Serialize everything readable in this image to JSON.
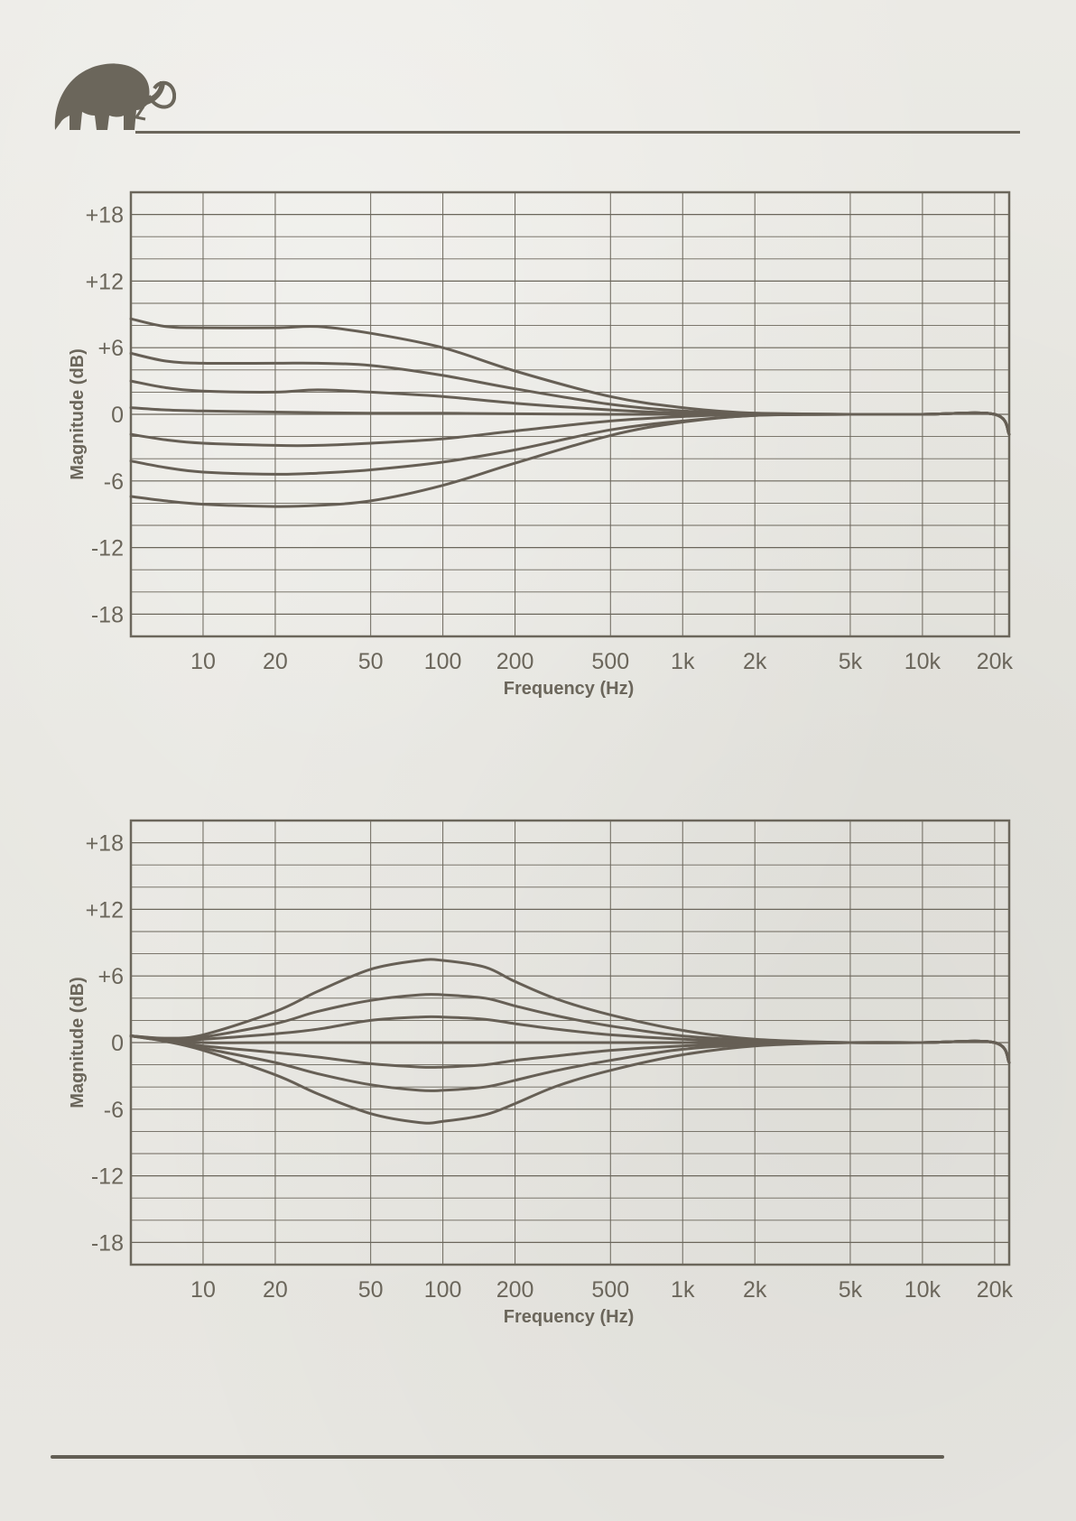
{
  "colors": {
    "ink": "#6b665b",
    "curve": "#665f55",
    "paper": "#e9e8e3"
  },
  "logo": {
    "icon": "mammoth-icon"
  },
  "chart_data": [
    {
      "type": "line",
      "xlabel": "Frequency (Hz)",
      "ylabel": "Magnitude (dB)",
      "xscale": "log",
      "xlim": [
        5,
        23000
      ],
      "ylim": [
        -20,
        20
      ],
      "grid": true,
      "x_ticks": [
        10,
        20,
        50,
        100,
        200,
        500,
        1000,
        2000,
        5000,
        10000,
        20000
      ],
      "x_tick_labels": [
        "10",
        "20",
        "50",
        "100",
        "200",
        "500",
        "1k",
        "2k",
        "5k",
        "10k",
        "20k"
      ],
      "y_ticks": [
        18,
        12,
        6,
        0,
        -6,
        -12,
        -18
      ],
      "y_tick_labels": [
        "+18",
        "+12",
        "+6",
        "0",
        "-6",
        "-12",
        "-18"
      ],
      "series": [
        {
          "x": [
            5,
            7,
            10,
            20,
            30,
            50,
            100,
            200,
            500,
            1000,
            2000,
            5000,
            10000,
            20000,
            23000
          ],
          "y": [
            8.6,
            7.9,
            7.8,
            7.8,
            7.9,
            7.3,
            6.0,
            3.9,
            1.6,
            0.6,
            0.1,
            0,
            0,
            0,
            -1.8
          ]
        },
        {
          "x": [
            5,
            7,
            10,
            20,
            30,
            50,
            100,
            200,
            500,
            1000,
            2000,
            5000,
            10000,
            20000,
            23000
          ],
          "y": [
            5.5,
            4.8,
            4.6,
            4.6,
            4.6,
            4.4,
            3.5,
            2.3,
            0.9,
            0.3,
            0.1,
            0,
            0,
            0,
            -1.8
          ]
        },
        {
          "x": [
            5,
            7,
            10,
            20,
            30,
            50,
            100,
            200,
            500,
            1000,
            2000,
            5000,
            10000,
            20000,
            23000
          ],
          "y": [
            3.0,
            2.4,
            2.1,
            2.0,
            2.2,
            2.0,
            1.6,
            1.0,
            0.4,
            0.1,
            0,
            0,
            0,
            0,
            -1.8
          ]
        },
        {
          "x": [
            5,
            7,
            10,
            20,
            50,
            100,
            200,
            500,
            1000,
            2000,
            5000,
            10000,
            20000,
            23000
          ],
          "y": [
            0.6,
            0.4,
            0.3,
            0.2,
            0.1,
            0.1,
            0.05,
            0,
            0,
            0,
            0,
            0,
            0,
            -1.8
          ]
        },
        {
          "x": [
            5,
            7,
            10,
            20,
            30,
            50,
            100,
            200,
            500,
            1000,
            2000,
            5000,
            10000,
            20000,
            23000
          ],
          "y": [
            -1.8,
            -2.3,
            -2.6,
            -2.8,
            -2.8,
            -2.6,
            -2.2,
            -1.5,
            -0.6,
            -0.2,
            0,
            0,
            0,
            0,
            -1.8
          ]
        },
        {
          "x": [
            5,
            7,
            10,
            20,
            30,
            50,
            100,
            200,
            500,
            1000,
            2000,
            5000,
            10000,
            20000,
            23000
          ],
          "y": [
            -4.2,
            -4.8,
            -5.2,
            -5.4,
            -5.3,
            -5.0,
            -4.3,
            -3.2,
            -1.4,
            -0.6,
            -0.1,
            0,
            0,
            0,
            -1.8
          ]
        },
        {
          "x": [
            5,
            7,
            10,
            20,
            30,
            50,
            100,
            200,
            500,
            1000,
            2000,
            5000,
            10000,
            20000,
            23000
          ],
          "y": [
            -7.4,
            -7.8,
            -8.1,
            -8.3,
            -8.2,
            -7.8,
            -6.4,
            -4.4,
            -1.9,
            -0.7,
            -0.1,
            0,
            0,
            0,
            -1.8
          ]
        }
      ]
    },
    {
      "type": "line",
      "xlabel": "Frequency (Hz)",
      "ylabel": "Magnitude (dB)",
      "xscale": "log",
      "xlim": [
        5,
        23000
      ],
      "ylim": [
        -20,
        20
      ],
      "grid": true,
      "x_ticks": [
        10,
        20,
        50,
        100,
        200,
        500,
        1000,
        2000,
        5000,
        10000,
        20000
      ],
      "x_tick_labels": [
        "10",
        "20",
        "50",
        "100",
        "200",
        "500",
        "1k",
        "2k",
        "5k",
        "10k",
        "20k"
      ],
      "y_ticks": [
        18,
        12,
        6,
        0,
        -6,
        -12,
        -18
      ],
      "y_tick_labels": [
        "+18",
        "+12",
        "+6",
        "0",
        "-6",
        "-12",
        "-18"
      ],
      "series": [
        {
          "x": [
            5,
            7,
            10,
            20,
            30,
            50,
            80,
            100,
            150,
            200,
            300,
            500,
            1000,
            2000,
            5000,
            10000,
            20000,
            23000
          ],
          "y": [
            0.6,
            0.4,
            0.7,
            2.8,
            4.6,
            6.6,
            7.4,
            7.4,
            6.8,
            5.5,
            3.9,
            2.5,
            1.1,
            0.3,
            0,
            0,
            0,
            -1.8
          ]
        },
        {
          "x": [
            5,
            7,
            10,
            20,
            30,
            50,
            80,
            100,
            150,
            200,
            300,
            500,
            1000,
            2000,
            5000,
            10000,
            20000,
            23000
          ],
          "y": [
            0.6,
            0.3,
            0.5,
            1.7,
            2.8,
            3.8,
            4.3,
            4.3,
            4.0,
            3.3,
            2.4,
            1.5,
            0.6,
            0.2,
            0,
            0,
            0,
            -1.8
          ]
        },
        {
          "x": [
            5,
            7,
            10,
            20,
            30,
            50,
            80,
            100,
            150,
            200,
            300,
            500,
            1000,
            2000,
            5000,
            10000,
            20000,
            23000
          ],
          "y": [
            0.6,
            0.2,
            0.3,
            0.8,
            1.2,
            2.0,
            2.3,
            2.3,
            2.1,
            1.7,
            1.2,
            0.7,
            0.3,
            0.1,
            0,
            0,
            0,
            -1.8
          ]
        },
        {
          "x": [
            5,
            7,
            10,
            20,
            50,
            100,
            200,
            500,
            1000,
            2000,
            5000,
            10000,
            20000,
            23000
          ],
          "y": [
            0.6,
            0.3,
            0,
            0,
            0,
            0,
            0,
            0,
            0,
            0,
            0,
            0,
            0,
            -1.8
          ]
        },
        {
          "x": [
            5,
            7,
            10,
            20,
            30,
            50,
            80,
            100,
            150,
            200,
            300,
            500,
            1000,
            2000,
            5000,
            10000,
            20000,
            23000
          ],
          "y": [
            0.6,
            0.2,
            -0.3,
            -0.9,
            -1.3,
            -1.9,
            -2.2,
            -2.2,
            -2.0,
            -1.6,
            -1.2,
            -0.7,
            -0.3,
            -0.1,
            0,
            0,
            0,
            -1.8
          ]
        },
        {
          "x": [
            5,
            7,
            10,
            20,
            30,
            50,
            80,
            100,
            150,
            200,
            300,
            500,
            1000,
            2000,
            5000,
            10000,
            20000,
            23000
          ],
          "y": [
            0.6,
            0.2,
            -0.5,
            -1.8,
            -2.8,
            -3.8,
            -4.3,
            -4.3,
            -4.0,
            -3.4,
            -2.5,
            -1.6,
            -0.6,
            -0.2,
            0,
            0,
            0,
            -1.8
          ]
        },
        {
          "x": [
            5,
            7,
            10,
            20,
            30,
            50,
            80,
            100,
            150,
            200,
            300,
            500,
            1000,
            2000,
            5000,
            10000,
            20000,
            23000
          ],
          "y": [
            0.6,
            0.1,
            -0.7,
            -2.9,
            -4.6,
            -6.4,
            -7.2,
            -7.1,
            -6.5,
            -5.5,
            -3.9,
            -2.5,
            -1.1,
            -0.3,
            0,
            0,
            0,
            -1.8
          ]
        }
      ]
    }
  ]
}
